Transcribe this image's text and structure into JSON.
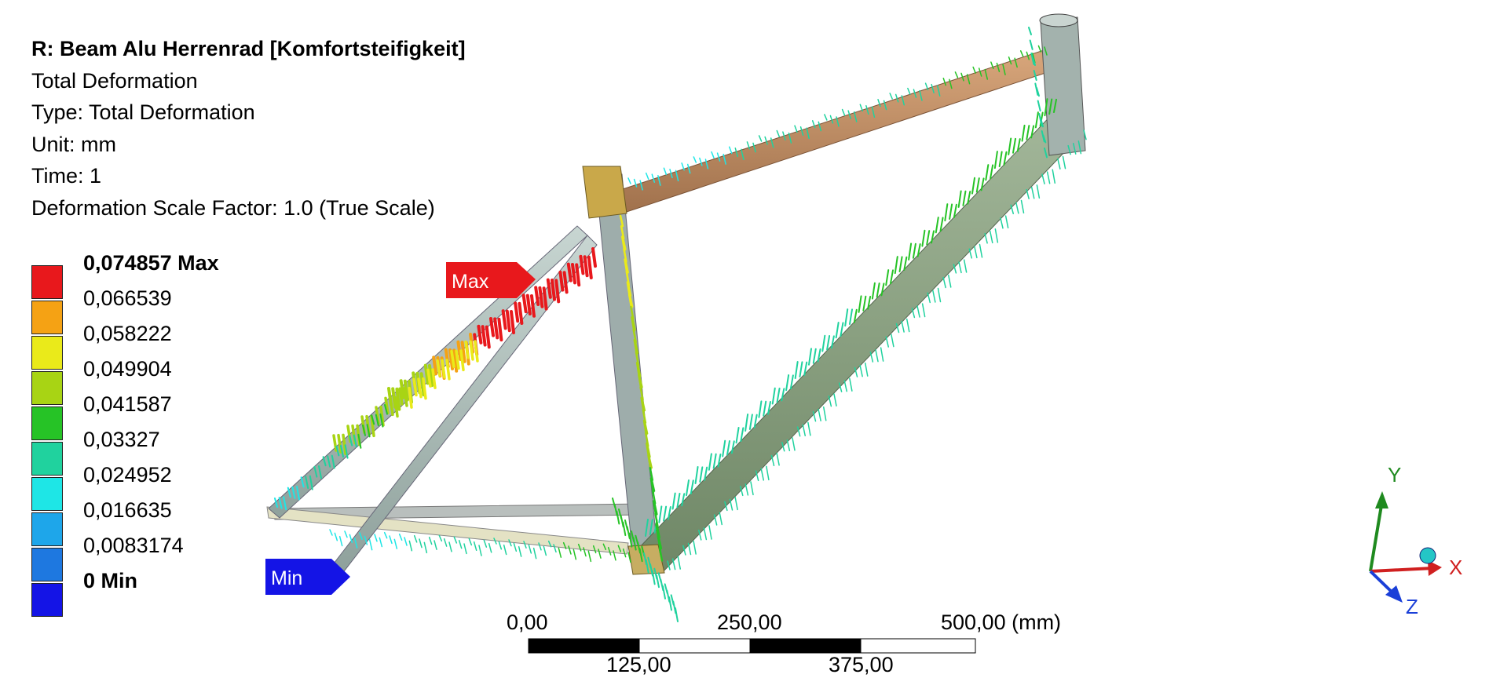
{
  "header": {
    "title": "R: Beam Alu Herrenrad [Komfortsteifigkeit]",
    "result": "Total Deformation",
    "type": "Type: Total Deformation",
    "unit": "Unit: mm",
    "time": "Time: 1",
    "scale_factor": "Deformation Scale Factor: 1.0 (True Scale)"
  },
  "legend": {
    "entries": [
      {
        "label": "0,074857 Max",
        "color": "#e8181c",
        "bold": true
      },
      {
        "label": "0,066539",
        "color": "#f5a214",
        "bold": false
      },
      {
        "label": "0,058222",
        "color": "#eaea1a",
        "bold": false
      },
      {
        "label": "0,049904",
        "color": "#a8d414",
        "bold": false
      },
      {
        "label": "0,041587",
        "color": "#26c326",
        "bold": false
      },
      {
        "label": "0,03327",
        "color": "#20d29e",
        "bold": false
      },
      {
        "label": "0,024952",
        "color": "#1ee6e6",
        "bold": false
      },
      {
        "label": "0,016635",
        "color": "#1ea6ea",
        "bold": false
      },
      {
        "label": "0,0083174",
        "color": "#1e78e0",
        "bold": false
      },
      {
        "label": "0 Min",
        "color": "#1414e6",
        "bold": true
      }
    ]
  },
  "probes": {
    "max_label": "Max",
    "min_label": "Min",
    "max_color": "#e8181c",
    "min_color": "#1414e6"
  },
  "scale_bar": {
    "top_labels": [
      "0,00",
      "250,00",
      "500,00 (mm)"
    ],
    "bottom_labels": [
      "125,00",
      "375,00"
    ]
  },
  "triad": {
    "x_label": "X",
    "y_label": "Y",
    "z_label": "Z",
    "x_color": "#e02020",
    "y_color": "#1f8a1f",
    "z_color": "#1a3fd8"
  }
}
